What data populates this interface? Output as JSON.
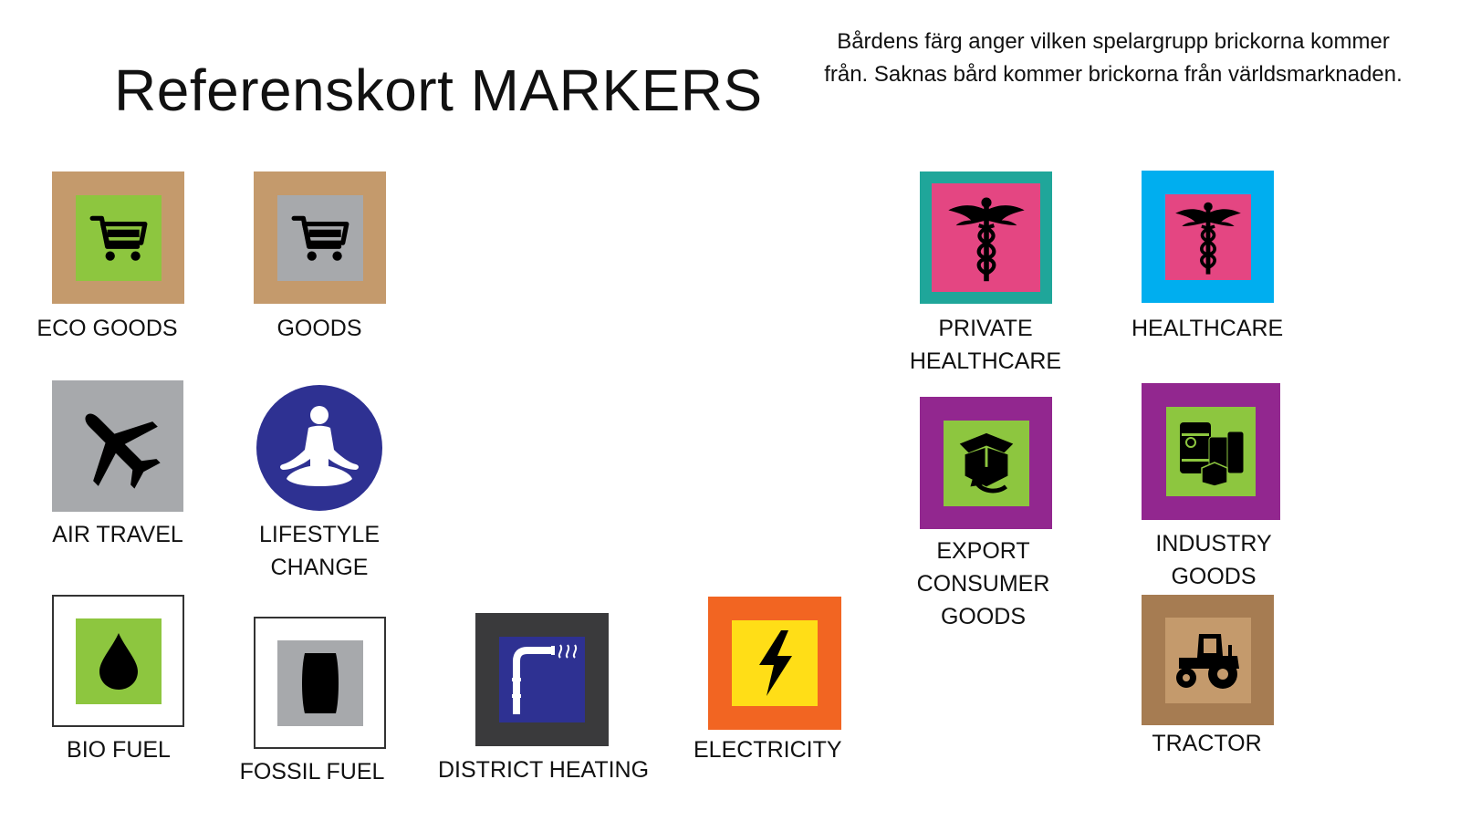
{
  "title": "Referenskort MARKERS",
  "note": "Bårdens färg anger vilken spelargrupp brickorna kommer från. Saknas bård kommer brickorna från världsmarknaden.",
  "markers": {
    "eco_goods": {
      "lines": [
        "ECO GOODS"
      ],
      "icon": "shopping-cart-icon",
      "border_color": "#c49a6c",
      "tile_color": "#8dc63f"
    },
    "goods": {
      "lines": [
        "GOODS"
      ],
      "icon": "shopping-cart-icon",
      "border_color": "#c49a6c",
      "tile_color": "#a7a9ac"
    },
    "air_travel": {
      "lines": [
        "AIR TRAVEL"
      ],
      "icon": "airplane-icon",
      "tile_color": "#a7a9ac"
    },
    "lifestyle_change": {
      "lines": [
        "LIFESTYLE",
        "CHANGE"
      ],
      "icon": "meditation-icon",
      "tile_color": "#2e3192"
    },
    "bio_fuel": {
      "lines": [
        "BIO FUEL"
      ],
      "icon": "drop-icon",
      "tile_color": "#8dc63f"
    },
    "fossil_fuel": {
      "lines": [
        "FOSSIL FUEL"
      ],
      "icon": "barrel-icon",
      "tile_color": "#a7a9ac"
    },
    "district_heating": {
      "lines": [
        "DISTRICT HEATING"
      ],
      "icon": "heating-pipe-icon",
      "border_color": "#3a3a3c",
      "tile_color": "#2e3192"
    },
    "electricity": {
      "lines": [
        "ELECTRICITY"
      ],
      "icon": "lightning-icon",
      "border_color": "#f26522",
      "tile_color": "#ffde17"
    },
    "private_healthcare": {
      "lines": [
        "PRIVATE",
        "HEALTHCARE"
      ],
      "icon": "caduceus-icon",
      "border_color": "#1fa69a",
      "tile_color": "#e44682"
    },
    "healthcare": {
      "lines": [
        "HEALTHCARE"
      ],
      "icon": "caduceus-icon",
      "border_color": "#00aeef",
      "tile_color": "#e44682"
    },
    "export_consumer_goods": {
      "lines": [
        "EXPORT",
        "CONSUMER",
        "GOODS"
      ],
      "icon": "export-box-icon",
      "border_color": "#92278f",
      "tile_color": "#8dc63f"
    },
    "industry_goods": {
      "lines": [
        "INDUSTRY",
        "GOODS"
      ],
      "icon": "barrels-icon",
      "border_color": "#92278f",
      "tile_color": "#8dc63f"
    },
    "tractor": {
      "lines": [
        "TRACTOR"
      ],
      "icon": "tractor-icon",
      "border_color": "#a67c52",
      "tile_color": "#c49a6c"
    }
  }
}
